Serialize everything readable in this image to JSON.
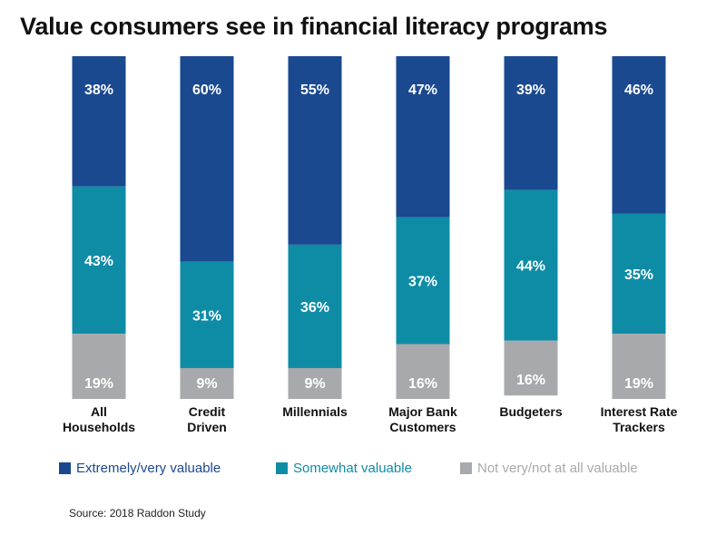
{
  "title": "Value consumers see in financial literacy programs",
  "source": "Source: 2018 Raddon Study",
  "legend": [
    {
      "label": "Extremely/very valuable",
      "color": "#1a4990"
    },
    {
      "label": "Somewhat valuable",
      "color": "#0e8ca6"
    },
    {
      "label": "Not very/not at all valuable",
      "color": "#a7a9ac"
    }
  ],
  "chart_data": {
    "type": "bar",
    "stacked": true,
    "categories": [
      [
        "All",
        "Households"
      ],
      [
        "Credit",
        "Driven"
      ],
      [
        "Millennials"
      ],
      [
        "Major Bank",
        "Customers"
      ],
      [
        "Budgeters"
      ],
      [
        "Interest Rate",
        "Trackers"
      ]
    ],
    "series": [
      {
        "name": "Extremely/very valuable",
        "values": [
          38,
          60,
          55,
          47,
          39,
          46
        ],
        "labels": [
          "38%",
          "60%",
          "55%",
          "47%",
          "39%",
          "46%"
        ]
      },
      {
        "name": "Somewhat valuable",
        "values": [
          43,
          31,
          36,
          37,
          44,
          35
        ],
        "labels": [
          "43%",
          "31%",
          "36%",
          "37%",
          "44%",
          "35%"
        ]
      },
      {
        "name": "Not very/not at all valuable",
        "values": [
          19,
          9,
          9,
          16,
          16,
          19
        ],
        "labels": [
          "19%",
          "9%",
          "9%",
          "16%",
          "16%",
          "19%"
        ]
      }
    ],
    "value_label_color": "#ffffff",
    "ylim": [
      0,
      100
    ],
    "grid": false,
    "legend_position": "bottom"
  }
}
